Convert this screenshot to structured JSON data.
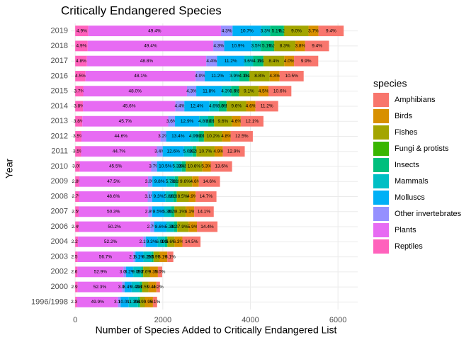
{
  "chart_data": {
    "type": "stacked-bar-horizontal",
    "title": "Critically Endangered Species",
    "x_label": "Number of Species Added to Critically Endangered List",
    "y_label": "Year",
    "legend_title": "species",
    "categories": [
      "2019",
      "2018",
      "2017",
      "2016",
      "2015",
      "2014",
      "2013",
      "2012",
      "2011",
      "2010",
      "2009",
      "2008",
      "2007",
      "2006",
      "2004",
      "2003",
      "2002",
      "2000",
      "1996/1998"
    ],
    "xlim": [
      -100,
      6450
    ],
    "xticks": [
      0,
      2000,
      4000,
      6000
    ],
    "grid": true,
    "legend": "right",
    "series": [
      {
        "name": "Amphibians",
        "color": "#F8766D",
        "values": [
          576,
          546,
          553,
          549,
          523,
          518,
          519,
          506,
          499,
          487,
          483,
          474,
          446,
          469,
          414,
          137,
          99,
          81,
          95
        ],
        "percent_labels": [
          "9.4%",
          "9.4%",
          "9.9%",
          "10.5%",
          "10.6%",
          "11.2%",
          "12.1%",
          "12.5%",
          "12.9%",
          "13.6%",
          "14.6%",
          "14.7%",
          "14.1%",
          "14.4%",
          "14.5%",
          "6.1%",
          "5.0%",
          "4.2%",
          "5.1%"
        ]
      },
      {
        "name": "Birds",
        "color": "#D89000",
        "values": [
          227,
          221,
          223,
          225,
          222,
          213,
          197,
          194,
          190,
          190,
          152,
          158,
          193,
          192,
          180,
          182,
          185,
          182,
          185
        ],
        "percent_labels": [
          "3.7%",
          "3.8%",
          "4.0%",
          "4.3%",
          "4.5%",
          "4.6%",
          "4.6%",
          "4.8%",
          "4.9%",
          "5.3%",
          "4.6%",
          "4.9%",
          "6.1%",
          "5.9%",
          "6.3%",
          "8.1%",
          "9.3%",
          "9.4%",
          "9.9%"
        ]
      },
      {
        "name": "Fishes",
        "color": "#A3A500",
        "values": [
          552,
          482,
          469,
          460,
          449,
          444,
          412,
          413,
          414,
          380,
          317,
          274,
          256,
          257,
          160,
          132,
          151,
          145,
          110
        ],
        "percent_labels": [
          "9.0%",
          "8.3%",
          "8.4%",
          "8.8%",
          "9.1%",
          "9.6%",
          "9.6%",
          "10.2%",
          "10.7%",
          "10.6%",
          "9.6%",
          "8.5%",
          "8.1%",
          "7.9%",
          "5.6%",
          "5.9%",
          "7.6%",
          "7.5%",
          "5.9%"
        ]
      },
      {
        "name": "Fungi & protists",
        "color": "#39B600",
        "values": [
          12,
          12,
          11,
          10,
          5,
          5,
          4,
          4,
          4,
          4,
          3,
          3,
          3,
          3,
          3,
          2,
          2,
          2,
          2
        ],
        "percent_labels": [
          "0.2%",
          "0.2%",
          "0.2%",
          "0.2%",
          "0.1%",
          "0.1%",
          "0.1%",
          "0.1%",
          "0.1%",
          "0.1%",
          "0.1%",
          "0.1%",
          "0.1%",
          "0.1%",
          "0.1%",
          "0.1%",
          "0.1%",
          "0.1%",
          "0.1%"
        ]
      },
      {
        "name": "Insects",
        "color": "#00BF7D",
        "values": [
          313,
          296,
          229,
          225,
          178,
          176,
          129,
          121,
          85,
          86,
          76,
          74,
          70,
          72,
          54,
          47,
          46,
          54,
          45
        ],
        "percent_labels": [
          "5.1%",
          "5.1%",
          "4.1%",
          "4.3%",
          "3.6%",
          "3.8%",
          "3.0%",
          "3.0%",
          "2.2%",
          "2.4%",
          "2.3%",
          "2.3%",
          "2.2%",
          "2.2%",
          "1.9%",
          "2.1%",
          "2.3%",
          "2.8%",
          "2.4%"
        ]
      },
      {
        "name": "Mammals",
        "color": "#00BFC4",
        "values": [
          202,
          203,
          201,
          204,
          212,
          213,
          206,
          198,
          194,
          190,
          188,
          187,
          168,
          173,
          171,
          184,
          179,
          182,
          211
        ],
        "percent_labels": [
          "3.3%",
          "3.5%",
          "3.6%",
          "3.9%",
          "4.3%",
          "4.6%",
          "4.8%",
          "4.9%",
          "5.0%",
          "5.3%",
          "5.7%",
          "5.8%",
          "5.3%",
          "5.3%",
          "6.0%",
          "8.2%",
          "9.0%",
          "9.4%",
          "11.3%"
        ]
      },
      {
        "name": "Molluscs",
        "color": "#00B0F6",
        "values": [
          656,
          633,
          625,
          585,
          582,
          574,
          553,
          542,
          488,
          376,
          324,
          300,
          269,
          280,
          266,
          182,
          163,
          163,
          187
        ],
        "percent_labels": [
          "10.7%",
          "10.9%",
          "11.2%",
          "11.2%",
          "11.8%",
          "12.4%",
          "12.9%",
          "13.4%",
          "12.6%",
          "10.5%",
          "9.8%",
          "9.3%",
          "8.5%",
          "8.6%",
          "9.3%",
          "8.1%",
          "8.2%",
          "8.4%",
          "10.0%"
        ]
      },
      {
        "name": "Other invertebrates",
        "color": "#9590FF",
        "values": [
          264,
          250,
          246,
          209,
          212,
          204,
          154,
          130,
          132,
          132,
          99,
          100,
          89,
          88,
          60,
          47,
          60,
          58,
          58
        ],
        "percent_labels": [
          "4.3%",
          "4.3%",
          "4.4%",
          "4.0%",
          "4.3%",
          "4.4%",
          "3.6%",
          "3.2%",
          "3.4%",
          "3.7%",
          "3.0%",
          "3.1%",
          "2.8%",
          "2.7%",
          "2.1%",
          "2.1%",
          "3.0%",
          "3.0%",
          "3.1%"
        ]
      },
      {
        "name": "Plants",
        "color": "#E76BF3",
        "values": [
          3028,
          2868,
          2724,
          2514,
          2369,
          2111,
          1961,
          1805,
          1730,
          1629,
          1570,
          1568,
          1590,
          1636,
          1490,
          1271,
          1050,
          1012,
          934
        ],
        "percent_labels": [
          "49.4%",
          "49.4%",
          "48.8%",
          "48.1%",
          "48.0%",
          "45.6%",
          "45.7%",
          "44.6%",
          "44.7%",
          "45.5%",
          "47.5%",
          "48.6%",
          "50.3%",
          "50.2%",
          "52.2%",
          "56.7%",
          "52.9%",
          "52.3%",
          "49.9%"
        ]
      },
      {
        "name": "Reptiles",
        "color": "#FF62BC",
        "values": [
          300,
          284,
          268,
          235,
          183,
          176,
          163,
          142,
          135,
          107,
          93,
          87,
          79,
          78,
          63,
          56,
          52,
          56,
          43
        ],
        "percent_labels": [
          "4.9%",
          "4.9%",
          "4.8%",
          "4.5%",
          "3.7%",
          "3.8%",
          "3.8%",
          "3.5%",
          "3.5%",
          "3.0%",
          "2.8%",
          "2.7%",
          "2.5%",
          "2.4%",
          "2.2%",
          "2.5%",
          "2.6%",
          "2.9%",
          "2.3%"
        ]
      }
    ]
  }
}
